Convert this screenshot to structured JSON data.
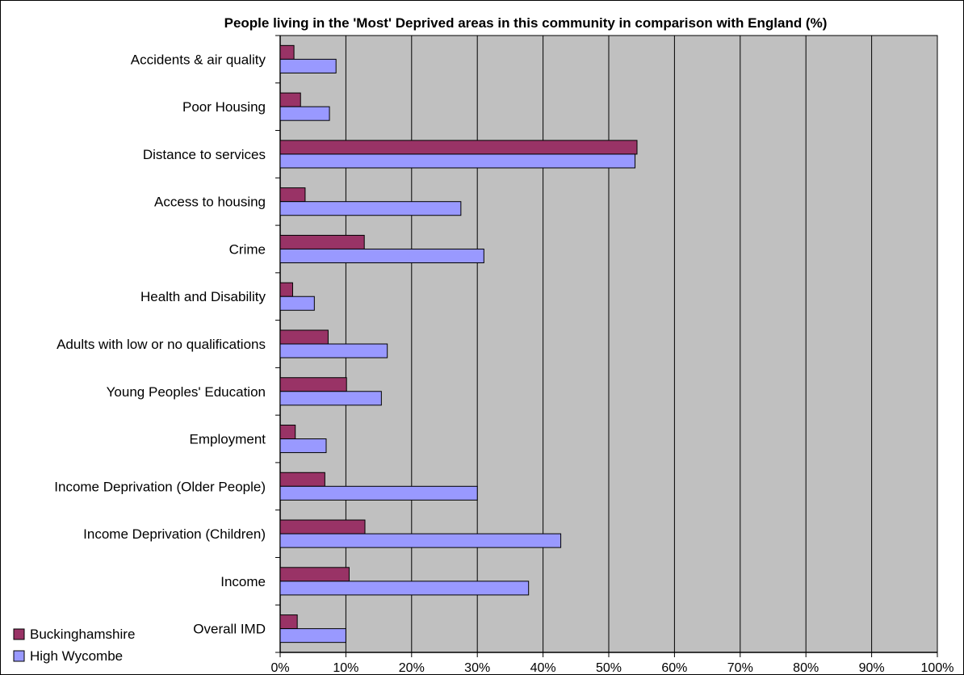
{
  "chart_data": {
    "type": "bar",
    "orientation": "horizontal",
    "title": "People living in the 'Most' Deprived areas in this community in comparison with England (%)",
    "xlabel": "",
    "ylabel": "",
    "xlim": [
      0,
      100
    ],
    "x_ticks": [
      "0%",
      "10%",
      "20%",
      "30%",
      "40%",
      "50%",
      "60%",
      "70%",
      "80%",
      "90%",
      "100%"
    ],
    "grid": true,
    "legend_position": "bottom-left",
    "categories": [
      "Accidents & air quality",
      "Poor Housing",
      "Distance to services",
      "Access to housing",
      "Crime",
      "Health and Disability",
      "Adults with low or no qualifications",
      "Young Peoples' Education",
      "Employment",
      "Income Deprivation (Older People)",
      "Income Deprivation (Children)",
      "Income",
      "Overall IMD"
    ],
    "series": [
      {
        "name": "Buckinghamshire",
        "color": "#993366",
        "values": [
          2.1,
          3.1,
          54.3,
          3.8,
          12.8,
          1.9,
          7.3,
          10.1,
          2.3,
          6.8,
          12.9,
          10.5,
          2.6
        ]
      },
      {
        "name": "High Wycombe",
        "color": "#9999ff",
        "values": [
          8.5,
          7.5,
          54.0,
          27.5,
          31.0,
          5.2,
          16.3,
          15.4,
          7.0,
          30.0,
          42.7,
          37.8,
          10.0
        ]
      }
    ],
    "plot_background": "#c0c0c0"
  }
}
